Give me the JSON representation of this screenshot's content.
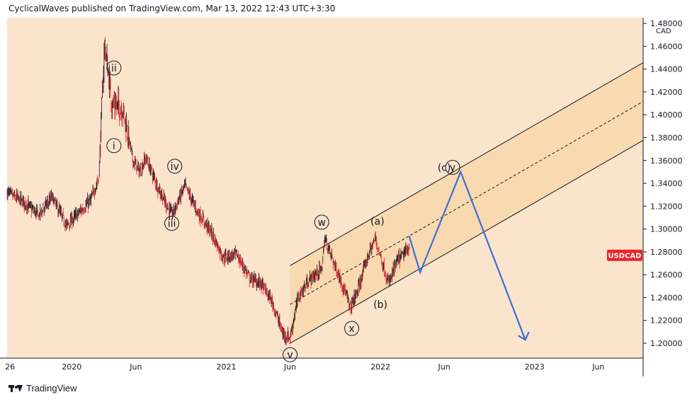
{
  "header": {
    "publisher_line": "CyclicalWaves published on TradingView.com, Mar 13, 2022 12:43 UTC+3:30"
  },
  "footer": {
    "brand": "TradingView"
  },
  "colors": {
    "background": "#fbe4cc",
    "channel_fill": "#f9d9b0",
    "candle_up": "#131722",
    "candle_down": "#e8262a",
    "projection": "#3b6fd8",
    "symbol_badge": "#e8262a",
    "axis_text": "#131722"
  },
  "chart_data": {
    "type": "candlestick",
    "symbol": "USDCAD",
    "currency_label": "CAD",
    "y_ticks": [
      "1.48000",
      "1.46000",
      "1.44000",
      "1.42000",
      "1.40000",
      "1.38000",
      "1.36000",
      "1.34000",
      "1.32000",
      "1.30000",
      "1.28000",
      "1.26000",
      "1.24000",
      "1.22000",
      "1.20000"
    ],
    "y_tick_values": [
      1.48,
      1.46,
      1.44,
      1.42,
      1.4,
      1.38,
      1.36,
      1.34,
      1.32,
      1.3,
      1.28,
      1.26,
      1.24,
      1.22,
      1.2
    ],
    "ylim": [
      1.187,
      1.485
    ],
    "x_range": [
      "2019-08-01",
      "2023-09-15"
    ],
    "x_ticks": [
      {
        "label": "26",
        "date": "2019-08-08"
      },
      {
        "label": "2020",
        "date": "2020-01-01"
      },
      {
        "label": "Jun",
        "date": "2020-06-01"
      },
      {
        "label": "2021",
        "date": "2021-01-01"
      },
      {
        "label": "Jun",
        "date": "2021-06-01"
      },
      {
        "label": "2022",
        "date": "2022-01-01"
      },
      {
        "label": "Jun",
        "date": "2022-06-01"
      },
      {
        "label": "2023",
        "date": "2023-01-01"
      },
      {
        "label": "Jun",
        "date": "2023-06-01"
      }
    ],
    "price_path": [
      [
        "2019-08-01",
        1.332
      ],
      [
        "2019-09-15",
        1.322
      ],
      [
        "2019-10-15",
        1.312
      ],
      [
        "2019-11-15",
        1.328
      ],
      [
        "2019-12-20",
        1.303
      ],
      [
        "2020-01-20",
        1.315
      ],
      [
        "2020-02-15",
        1.325
      ],
      [
        "2020-03-05",
        1.345
      ],
      [
        "2020-03-19",
        1.462
      ],
      [
        "2020-04-05",
        1.41
      ],
      [
        "2020-05-01",
        1.405
      ],
      [
        "2020-05-25",
        1.36
      ],
      [
        "2020-06-10",
        1.35
      ],
      [
        "2020-06-25",
        1.362
      ],
      [
        "2020-07-25",
        1.335
      ],
      [
        "2020-08-25",
        1.312
      ],
      [
        "2020-09-25",
        1.338
      ],
      [
        "2020-10-25",
        1.315
      ],
      [
        "2020-11-25",
        1.298
      ],
      [
        "2020-12-25",
        1.275
      ],
      [
        "2021-01-25",
        1.278
      ],
      [
        "2021-02-25",
        1.257
      ],
      [
        "2021-03-25",
        1.252
      ],
      [
        "2021-04-20",
        1.236
      ],
      [
        "2021-05-15",
        1.208
      ],
      [
        "2021-06-01",
        1.205
      ],
      [
        "2021-06-20",
        1.24
      ],
      [
        "2021-07-15",
        1.255
      ],
      [
        "2021-08-15",
        1.265
      ],
      [
        "2021-08-22",
        1.292
      ],
      [
        "2021-09-15",
        1.268
      ],
      [
        "2021-10-10",
        1.245
      ],
      [
        "2021-10-21",
        1.23
      ],
      [
        "2021-11-10",
        1.248
      ],
      [
        "2021-12-01",
        1.275
      ],
      [
        "2021-12-20",
        1.292
      ],
      [
        "2022-01-10",
        1.265
      ],
      [
        "2022-01-20",
        1.252
      ],
      [
        "2022-02-10",
        1.272
      ],
      [
        "2022-03-10",
        1.283
      ]
    ],
    "channel": {
      "start_date": "2021-06-01",
      "end_date": "2023-10-01",
      "upper": [
        1.268,
        1.449
      ],
      "middle": [
        1.234,
        1.415
      ],
      "lower": [
        1.2,
        1.381
      ]
    },
    "projection_path": [
      [
        "2022-03-10",
        1.294
      ],
      [
        "2022-04-05",
        1.262
      ],
      [
        "2022-07-10",
        1.35
      ],
      [
        "2022-12-10",
        1.203
      ]
    ],
    "wave_labels": [
      {
        "text": "ii",
        "date": "2020-04-10",
        "value": 1.441,
        "circled": true
      },
      {
        "text": "i",
        "date": "2020-04-10",
        "value": 1.373,
        "circled": true
      },
      {
        "text": "iv",
        "date": "2020-09-01",
        "value": 1.355,
        "circled": true
      },
      {
        "text": "iii",
        "date": "2020-08-25",
        "value": 1.305,
        "circled": true
      },
      {
        "text": "w",
        "date": "2021-08-15",
        "value": 1.306,
        "circled": true
      },
      {
        "text": "x",
        "date": "2021-10-25",
        "value": 1.213,
        "circled": true
      },
      {
        "text": "v",
        "date": "2021-06-01",
        "value": 1.19,
        "circled": true
      },
      {
        "text": "(a)",
        "date": "2021-12-25",
        "value": 1.307,
        "circled": false
      },
      {
        "text": "(b)",
        "date": "2022-01-01",
        "value": 1.234,
        "circled": false
      },
      {
        "text": "(c)",
        "date": "2022-06-01",
        "value": 1.354,
        "circled": false
      },
      {
        "text": "y",
        "date": "2022-06-21",
        "value": 1.354,
        "circled": true
      }
    ],
    "last_price_label": "USDCAD",
    "last_price_value": 1.277,
    "grid": false,
    "legend": "none"
  }
}
